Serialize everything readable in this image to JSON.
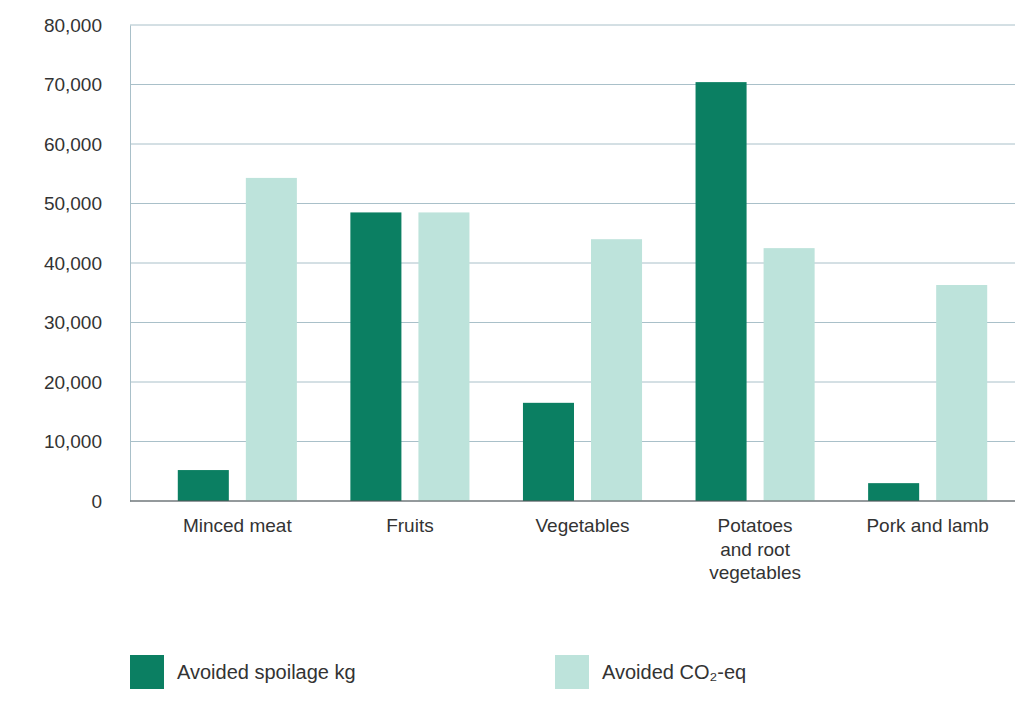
{
  "chart_data": {
    "type": "bar",
    "categories": [
      "Minced meat",
      "Fruits",
      "Vegetables",
      "Potatoes and root vegetables",
      "Pork and lamb"
    ],
    "series": [
      {
        "name": "Avoided spoilage kg",
        "color": "#0b7f62",
        "values": [
          5200,
          48500,
          16500,
          70400,
          3000
        ]
      },
      {
        "name": "Avoided CO₂-eq",
        "color": "#bde3db",
        "values": [
          54300,
          48500,
          44000,
          42500,
          36300
        ]
      }
    ],
    "ylim": [
      0,
      80000
    ],
    "yticks": [
      0,
      {
        "value": 10000,
        "label": "10,000"
      },
      {
        "value": 20000,
        "label": "20,000"
      },
      {
        "value": 30000,
        "label": "30,000"
      },
      {
        "value": 40000,
        "label": "40,000"
      },
      {
        "value": 50000,
        "label": "50,000"
      },
      {
        "value": 60000,
        "label": "60,000"
      },
      {
        "value": 70000,
        "label": "70,000"
      },
      {
        "value": 80000,
        "label": "80,000"
      }
    ],
    "grid": true,
    "legend": "bottom"
  }
}
